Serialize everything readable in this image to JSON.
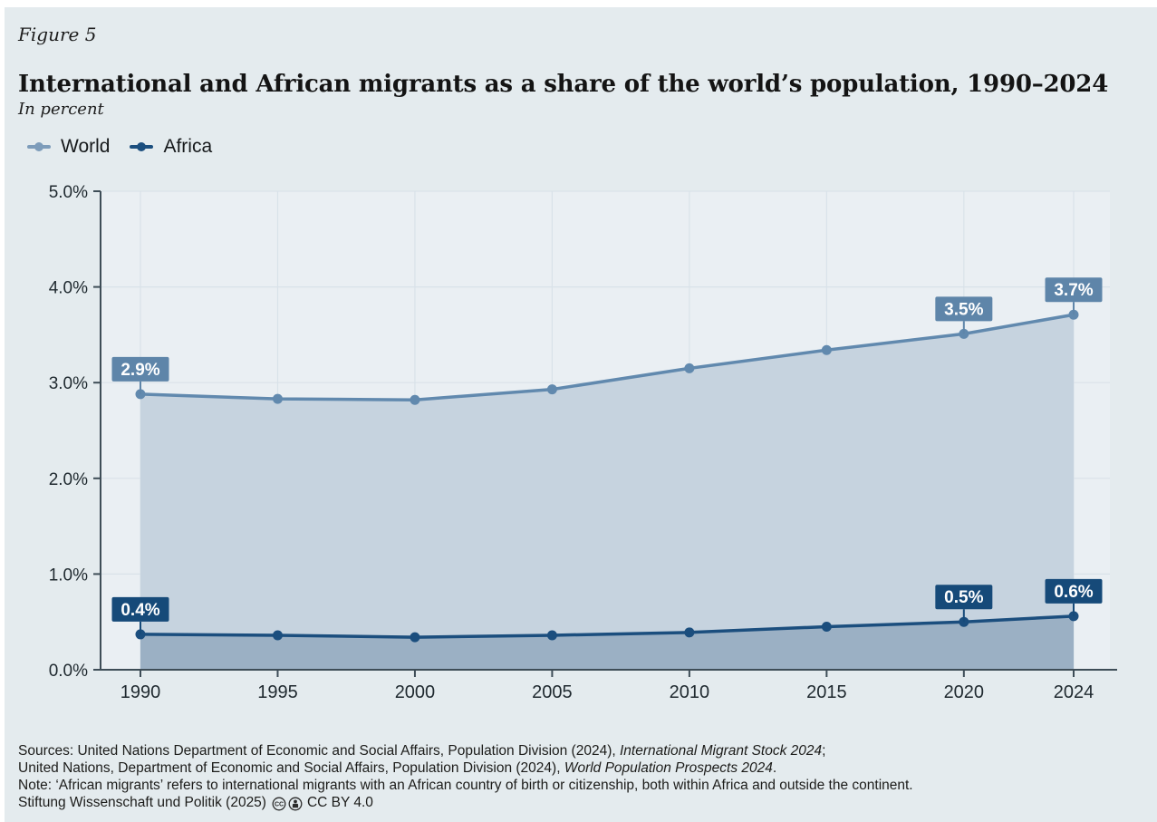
{
  "figure_label": "Figure 5",
  "title": "International and African migrants as a share of the world’s population, 1990–2024",
  "subtitle": "In percent",
  "legend": [
    {
      "label": "World",
      "color": "#7d9cba"
    },
    {
      "label": "Africa",
      "color": "#1b4e7e"
    }
  ],
  "colors": {
    "frame": "#ffffff",
    "page_bg": "#e4ebee",
    "plot_bg": "#eaeff3",
    "grid": "#d9e2e9",
    "axis": "#3e4d57",
    "tick_text": "#1f292f",
    "text": "#1a1a1a"
  },
  "chart_data": {
    "type": "area",
    "title": "International and African migrants as a share of the world’s population, 1990–2024",
    "unit": "percent of world population",
    "x": [
      1990,
      1995,
      2000,
      2005,
      2010,
      2015,
      2020,
      2024
    ],
    "x_range": [
      1990,
      2024
    ],
    "x_ticks": [
      {
        "year": 1990,
        "label": "1990"
      },
      {
        "year": 1995,
        "label": "1995"
      },
      {
        "year": 2000,
        "label": "2000"
      },
      {
        "year": 2005,
        "label": "2005"
      },
      {
        "year": 2010,
        "label": "2010"
      },
      {
        "year": 2015,
        "label": "2015"
      },
      {
        "year": 2020,
        "label": "2020"
      },
      {
        "year": 2024,
        "label": "2024"
      }
    ],
    "ylim": [
      0,
      5
    ],
    "y_ticks": [
      {
        "value": 0,
        "label": "0.0%"
      },
      {
        "value": 1,
        "label": "1.0%"
      },
      {
        "value": 2,
        "label": "2.0%"
      },
      {
        "value": 3,
        "label": "3.0%"
      },
      {
        "value": 4,
        "label": "4.0%"
      },
      {
        "value": 5,
        "label": "5.0%"
      }
    ],
    "grid": true,
    "legend_position": "top-left",
    "series": [
      {
        "name": "World",
        "color": "#6189ae",
        "fill": "#c6d3df",
        "label_bg": "#5e85a9",
        "values": [
          2.88,
          2.83,
          2.82,
          2.93,
          3.15,
          3.34,
          3.51,
          3.71
        ],
        "point_labels": [
          {
            "year": 1990,
            "text": "2.9%"
          },
          {
            "year": 2020,
            "text": "3.5%"
          },
          {
            "year": 2024,
            "text": "3.7%"
          }
        ]
      },
      {
        "name": "Africa",
        "color": "#1b4e7e",
        "fill": "#9bb0c4",
        "label_bg": "#164a79",
        "values": [
          0.37,
          0.36,
          0.34,
          0.36,
          0.39,
          0.45,
          0.5,
          0.56
        ],
        "point_labels": [
          {
            "year": 1990,
            "text": "0.4%"
          },
          {
            "year": 2020,
            "text": "0.5%"
          },
          {
            "year": 2024,
            "text": "0.6%"
          }
        ]
      }
    ]
  },
  "footer": {
    "line1_prefix": "Sources: United Nations Department of Economic and Social Affairs, Population Division (2024), ",
    "line1_italic": "International Migrant Stock 2024",
    "line1_suffix": ";",
    "line2_prefix": "United Nations, Department of Economic and Social Affairs, Population Division (2024), ",
    "line2_italic": "World Population Prospects 2024",
    "line2_suffix": ".",
    "line3": "Note: ‘African migrants’ refers to international migrants with an African country of birth or citizenship, both within Africa and outside the continent.",
    "line4_prefix": "Stiftung Wissenschaft und Politik (2025)",
    "line4_suffix": "CC BY 4.0"
  }
}
